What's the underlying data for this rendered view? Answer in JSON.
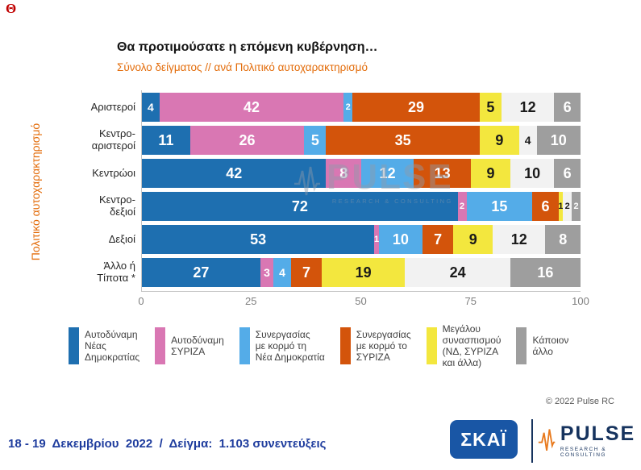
{
  "corner_mark": "Θ",
  "header": {
    "title": "Θα προτιμούσατε η επόμενη κυβέρνηση…",
    "subtitle": "Σύνολο δείγματος // ανά Πολιτικό αυτοχαρακτηρισμό"
  },
  "y_axis_label": "Πολιτικό αυτοχαρακτηρισμό",
  "watermark": {
    "text": "PULSE",
    "subtext": "RESEARCH & CONSULTING"
  },
  "chart_data": {
    "type": "bar",
    "orientation": "horizontal",
    "stacked": true,
    "title": "Θα προτιμούσατε η επόμενη κυβέρνηση…",
    "subtitle": "Σύνολο δείγματος // ανά Πολιτικό αυτοχαρακτηρισμό",
    "ylabel": "Πολιτικό αυτοχαρακτηρισμό",
    "xlim": [
      0,
      100
    ],
    "x_ticks": [
      0,
      25,
      50,
      75,
      100
    ],
    "categories": [
      "Αριστεροί",
      "Κεντρο-αριστεροί",
      "Κεντρώοι",
      "Κεντρο-δεξιοί",
      "Δεξιοί",
      "Άλλο ή Τίποτα *"
    ],
    "category_display": [
      "Αριστεροί",
      "Κεντρο-\nαριστεροί",
      "Κεντρώοι",
      "Κεντρο-\nδεξιοί",
      "Δεξιοί",
      "Άλλο ή\nΤίποτα *"
    ],
    "series": [
      {
        "name": "Αυτοδύναμη Νέας Δημοκρατίας",
        "color": "#1e6fb0",
        "text_color": "#ffffff",
        "values": [
          4,
          11,
          42,
          72,
          53,
          27
        ]
      },
      {
        "name": "Αυτοδύναμη ΣΥΡΙΖΑ",
        "color": "#d977b3",
        "text_color": "#ffffff",
        "values": [
          42,
          26,
          8,
          2,
          1,
          3
        ]
      },
      {
        "name": "Συνεργασίας με κορμό τη Νέα Δημοκρατία",
        "color": "#54ace8",
        "text_color": "#ffffff",
        "values": [
          2,
          5,
          12,
          15,
          10,
          4
        ]
      },
      {
        "name": "Συνεργασίας με κορμό το ΣΥΡΙΖΑ",
        "color": "#d3540b",
        "text_color": "#ffffff",
        "values": [
          29,
          35,
          13,
          6,
          7,
          7
        ]
      },
      {
        "name": "Μεγάλου συνασπισμού (ΝΔ, ΣΥΡΙΖΑ και άλλα)",
        "color": "#f3e73e",
        "text_color": "#1a1a1a",
        "values": [
          5,
          9,
          9,
          1,
          9,
          19
        ]
      },
      {
        "name": "",
        "color": "#f2f2f2",
        "text_color": "#1a1a1a",
        "values": [
          12,
          4,
          10,
          2,
          12,
          24
        ]
      },
      {
        "name": "Κάποιον άλλο",
        "color": "#9e9e9e",
        "text_color": "#ffffff",
        "values": [
          6,
          10,
          6,
          2,
          8,
          16
        ]
      }
    ]
  },
  "legend": [
    {
      "label": "Αυτοδύναμη\nΝέας\nΔημοκρατίας",
      "color": "#1e6fb0"
    },
    {
      "label": "Αυτοδύναμη\nΣΥΡΙΖΑ",
      "color": "#d977b3"
    },
    {
      "label": "Συνεργασίας\nμε κορμό τη\nΝέα Δημοκρατία",
      "color": "#54ace8"
    },
    {
      "label": "Συνεργασίας\nμε κορμό το\nΣΥΡΙΖΑ",
      "color": "#d3540b"
    },
    {
      "label": "Μεγάλου\nσυνασπισμού\n(ΝΔ, ΣΥΡΙΖΑ\nκαι άλλα)",
      "color": "#f3e73e"
    },
    {
      "label": "Κάποιον\nάλλο",
      "color": "#9e9e9e"
    }
  ],
  "copyright": "© 2022 Pulse RC",
  "footer": {
    "text": "18 - 19  Δεκεμβρίου  2022  /  Δείγμα:  1.103 συνεντεύξεις",
    "skai_logo": "ΣΚΑΪ",
    "pulse_logo": "PULSE",
    "pulse_logo_sub": "RESEARCH & CONSULTING"
  }
}
